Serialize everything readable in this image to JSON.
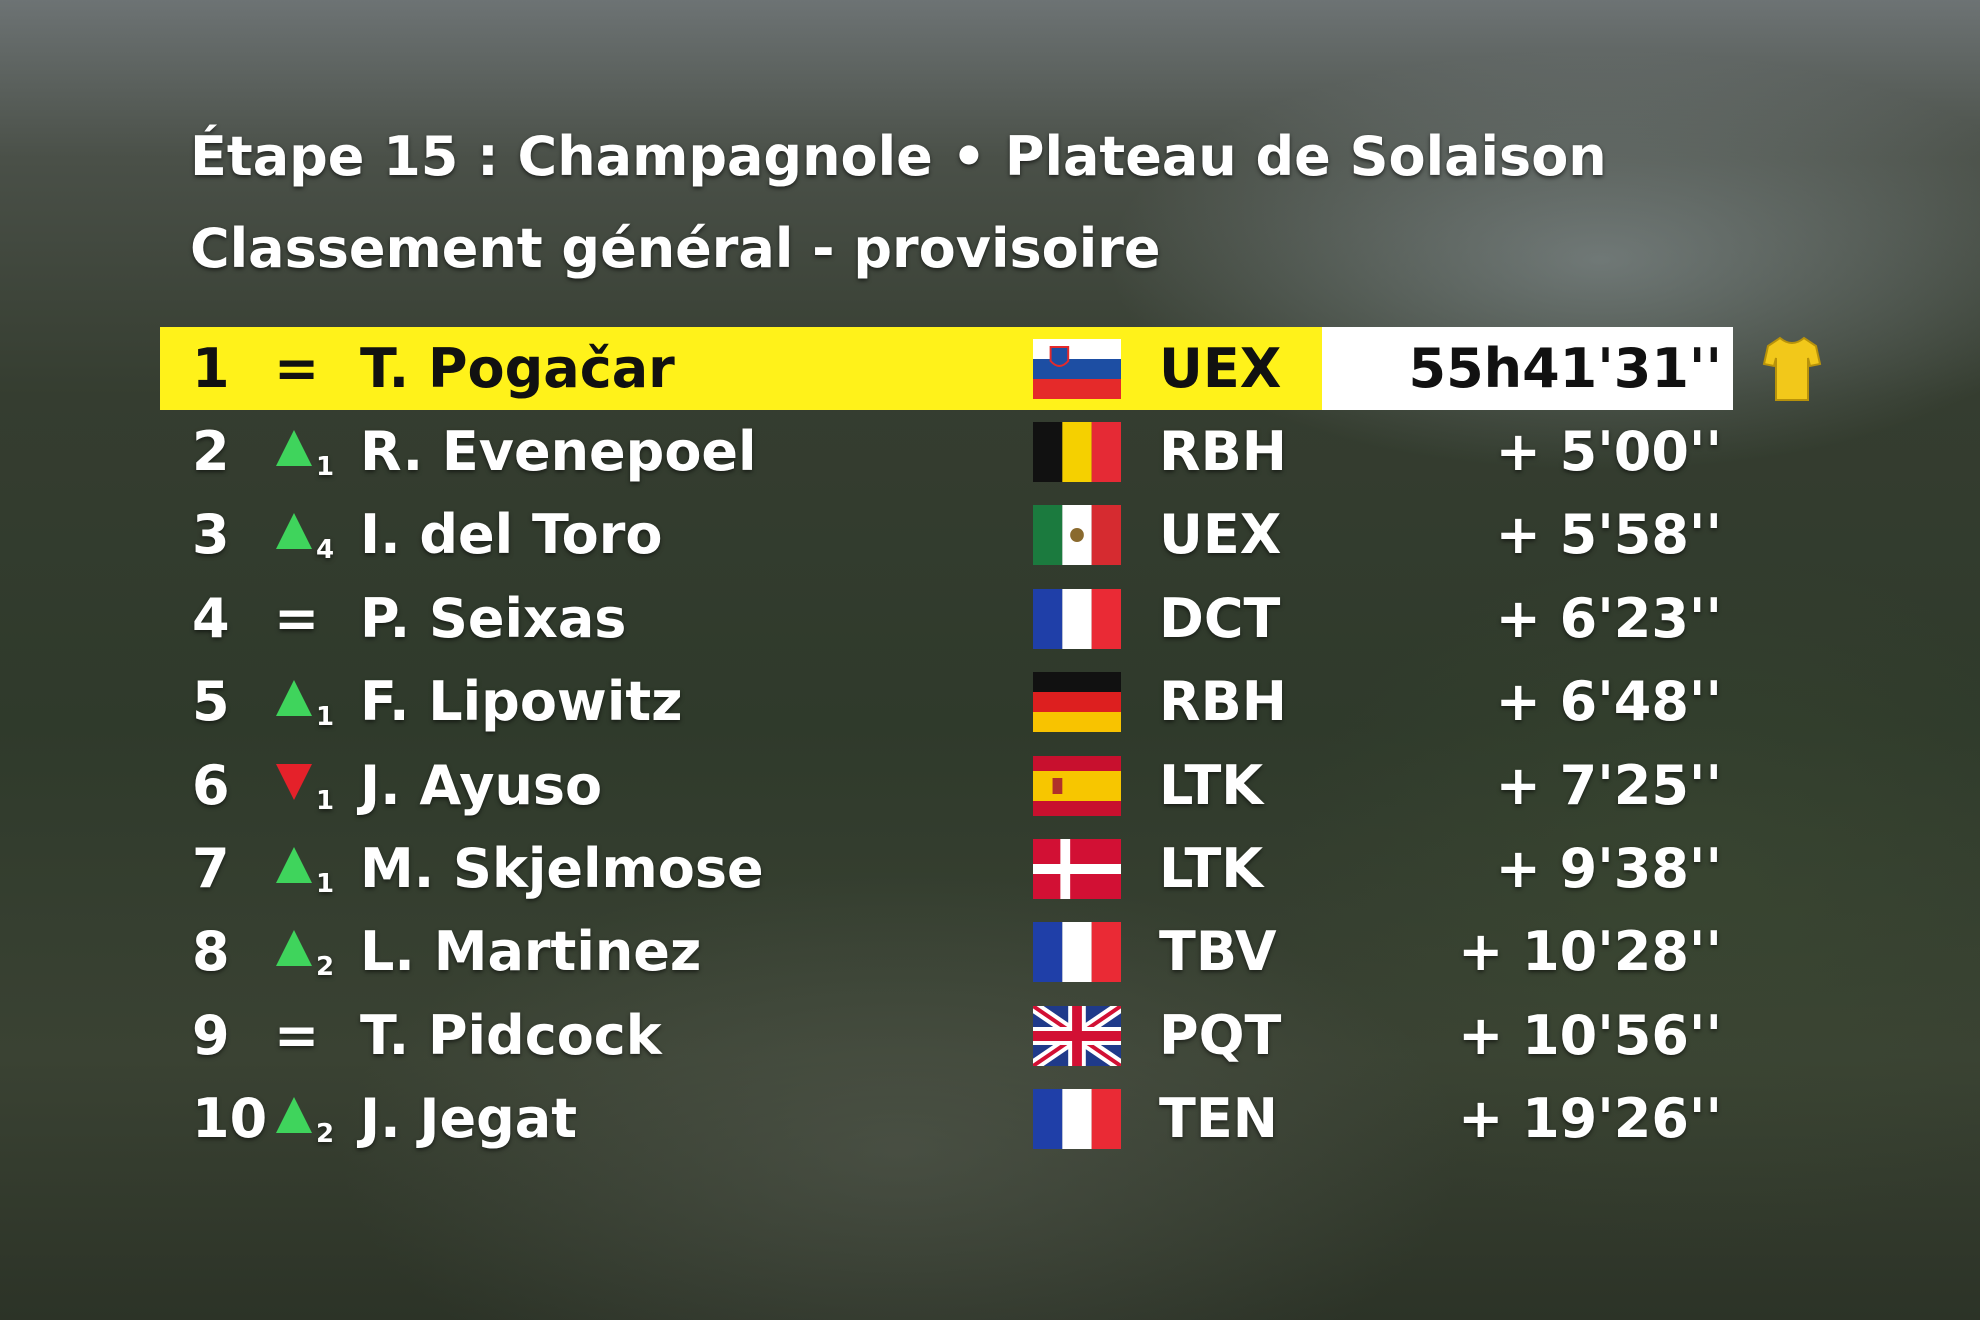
{
  "header": {
    "title": "Étape 15 : Champagnole • Plateau de Solaison",
    "subtitle": "Classement général - provisoire"
  },
  "standings": [
    {
      "rank": 1,
      "change": "=",
      "rider": "T. Pogačar",
      "flag": "SI",
      "team": "UEX",
      "time": "55h41'31''"
    },
    {
      "rank": 2,
      "change": 1,
      "trend": "up",
      "rider": "R. Evenepoel",
      "flag": "BE",
      "team": "RBH",
      "time": "+ 5'00''"
    },
    {
      "rank": 3,
      "change": 4,
      "trend": "up",
      "rider": "I. del Toro",
      "flag": "MX",
      "team": "UEX",
      "time": "+ 5'58''"
    },
    {
      "rank": 4,
      "change": "=",
      "rider": "P. Seixas",
      "flag": "FR",
      "team": "DCT",
      "time": "+ 6'23''"
    },
    {
      "rank": 5,
      "change": 1,
      "trend": "up",
      "rider": "F. Lipowitz",
      "flag": "DE",
      "team": "RBH",
      "time": "+ 6'48''"
    },
    {
      "rank": 6,
      "change": 1,
      "trend": "down",
      "rider": "J. Ayuso",
      "flag": "ES",
      "team": "LTK",
      "time": "+ 7'25''"
    },
    {
      "rank": 7,
      "change": 1,
      "trend": "up",
      "rider": "M. Skjelmose",
      "flag": "DK",
      "team": "LTK",
      "time": "+ 9'38''"
    },
    {
      "rank": 8,
      "change": 2,
      "trend": "up",
      "rider": "L. Martinez",
      "flag": "FR",
      "team": "TBV",
      "time": "+ 10'28''"
    },
    {
      "rank": 9,
      "change": "=",
      "rider": "T. Pidcock",
      "flag": "GB",
      "team": "PQT",
      "time": "+ 10'56''"
    },
    {
      "rank": 10,
      "change": 2,
      "trend": "up",
      "rider": "J. Jegat",
      "flag": "FR",
      "team": "TEN",
      "time": "+ 19'26''"
    }
  ]
}
